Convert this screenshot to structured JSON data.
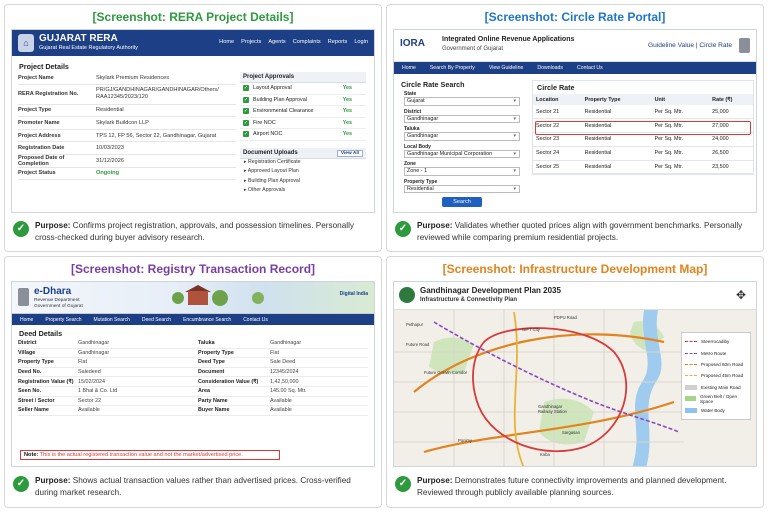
{
  "panels": {
    "rera": {
      "title": "[Screenshot: RERA Project Details]",
      "purpose_label": "Purpose:",
      "purpose_text": "Confirms project registration, approvals, and possession timelines. Personally cross-checked during buyer advisory research."
    },
    "circle": {
      "title": "[Screenshot: Circle Rate Portal]",
      "purpose_label": "Purpose:",
      "purpose_text": "Validates whether quoted prices align with government benchmarks. Personally reviewed while comparing premium residential projects."
    },
    "registry": {
      "title": "[Screenshot: Registry Transaction Record]",
      "purpose_label": "Purpose:",
      "purpose_text": "Shows actual transaction values rather than advertised prices. Cross-verified during market research."
    },
    "infra": {
      "title": "[Screenshot: Infrastructure Development Map]",
      "purpose_label": "Purpose:",
      "purpose_text": "Demonstrates future connectivity improvements and planned development. Reviewed through publicly available planning sources."
    }
  },
  "rera": {
    "header_title": "GUJARAT RERA",
    "header_sub": "Gujarat Real Estate Regulatory Authority",
    "nav": [
      "Home",
      "Projects",
      "Agents",
      "Complaints",
      "Reports",
      "Login"
    ],
    "section_title": "Project Details",
    "details": [
      {
        "k": "Project Name",
        "v": "Skylark Premium Residences"
      },
      {
        "k": "RERA Registration No.",
        "v": "PR/GJ/GANDHINAGAR/GANDHINAGAR/Others/ RAA12345/2023/120"
      },
      {
        "k": "Project Type",
        "v": "Residential"
      },
      {
        "k": "Promoter Name",
        "v": "Skylark Buildcon LLP"
      },
      {
        "k": "Project Address",
        "v": "TPS 12, FP 56, Sector 22, Gandhinagar, Gujarat"
      },
      {
        "k": "Registration Date",
        "v": "10/03/2023"
      },
      {
        "k": "Proposed Date of Completion",
        "v": "31/12/2026"
      },
      {
        "k": "Project Status",
        "v": "Ongoing"
      }
    ],
    "approvals_title": "Project Approvals",
    "approvals": [
      {
        "name": "Layout Approval",
        "status": "Yes"
      },
      {
        "name": "Building Plan Approval",
        "status": "Yes"
      },
      {
        "name": "Environmental Clearance",
        "status": "Yes"
      },
      {
        "name": "Fire NOC",
        "status": "Yes"
      },
      {
        "name": "Airport NOC",
        "status": "Yes"
      }
    ],
    "uploads_title": "Document Uploads",
    "view_all": "View All",
    "uploads": [
      "Registration Certificate",
      "Approved Layout Plan",
      "Building Plan Approval",
      "Other Approvals"
    ]
  },
  "circle": {
    "logo": "IORA",
    "header_title": "Integrated Online Revenue Applications",
    "header_sub": "Government of Gujarat",
    "header_right": "Guideline Value | Circle Rate",
    "nav": [
      "Home",
      "Search By Property",
      "View Guideline",
      "Downloads",
      "Contact Us"
    ],
    "search_title": "Circle Rate Search",
    "fields": [
      {
        "label": "State",
        "value": "Gujarat"
      },
      {
        "label": "District",
        "value": "Gandhinagar"
      },
      {
        "label": "Taluka",
        "value": "Gandhinagar"
      },
      {
        "label": "Local Body",
        "value": "Gandhinagar Municipal Corporation"
      },
      {
        "label": "Zone",
        "value": "Zone - 1"
      },
      {
        "label": "Property Type",
        "value": "Residential"
      }
    ],
    "search_button": "Search",
    "table_title": "Circle Rate",
    "columns": [
      "Location",
      "Property Type",
      "Unit",
      "Rate (₹)"
    ],
    "rows": [
      [
        "Sector 21",
        "Residential",
        "Per Sq. Mtr.",
        "25,000"
      ],
      [
        "Sector 22",
        "Residential",
        "Per Sq. Mtr.",
        "27,000"
      ],
      [
        "Sector 23",
        "Residential",
        "Per Sq. Mtr.",
        "24,000"
      ],
      [
        "Sector 24",
        "Residential",
        "Per Sq. Mtr.",
        "26,500"
      ],
      [
        "Sector 25",
        "Residential",
        "Per Sq. Mtr.",
        "23,500"
      ]
    ],
    "highlight_row": 1
  },
  "registry": {
    "header_title": "e-Dhara",
    "header_sub1": "Revenue Department",
    "header_sub2": "Government of Gujarat",
    "badge": "Digital India",
    "nav": [
      "Home",
      "Property Search",
      "Mutation Search",
      "Deed Search",
      "Encumbrance Search",
      "Contact Us"
    ],
    "section_title": "Deed Details",
    "rows": [
      [
        "District",
        "Gandhinagar",
        "Taluka",
        "Gandhinagar"
      ],
      [
        "Village",
        "Gandhinagar",
        "Property Type",
        "Flat"
      ],
      [
        "Property Type",
        "Flat",
        "Deed Type",
        "Sale Deed"
      ],
      [
        "Deed No.",
        "Saledeed",
        "Document",
        "12345/2024"
      ],
      [
        "Registration Value (₹)",
        "15/02/2024",
        "Consideration Value (₹)",
        "1,42,50,000"
      ],
      [
        "Seen No.",
        "1 Bhai & Co. Ltd",
        "Area",
        "145.00 Sq. Mtr."
      ],
      [
        "Street / Sector",
        "Sector 22",
        "Party Name",
        "Available"
      ],
      [
        "Seller Name",
        "Available",
        "Buyer Name",
        "Available"
      ]
    ],
    "note_label": "Note:",
    "note_text": "This is the actual registered transaction value and not the market/advertised price."
  },
  "infra": {
    "title": "Gandhinagar Development Plan 2035",
    "subtitle": "Infrastructure & Connectivity Plan",
    "legend": [
      {
        "label": "Steerrocadiby",
        "color": "#d83a3a"
      },
      {
        "label": "Metro Route",
        "color": "#8a49c4"
      },
      {
        "label": "Proposed 60m Road",
        "color": "#e3831d"
      },
      {
        "label": "Proposed 45m Road",
        "color": "#e8b33a"
      },
      {
        "label": "Existing Main Road",
        "color": "#cfcfcf"
      },
      {
        "label": "Green Belt / Open Space",
        "color": "#a6d58a"
      },
      {
        "label": "Water Body",
        "color": "#8ec2ea"
      }
    ],
    "labels": [
      "GIFT City",
      "PDPU Road",
      "Future Growth Corridor",
      "Gandhinagar Railway Station",
      "Sargasan",
      "Koba",
      "Pethapur",
      "Future Road",
      "Ponimy"
    ]
  },
  "colors": {
    "primary_blue": "#1c3f85",
    "success_green": "#2e9a3e",
    "alert_red": "#d83a3a"
  }
}
